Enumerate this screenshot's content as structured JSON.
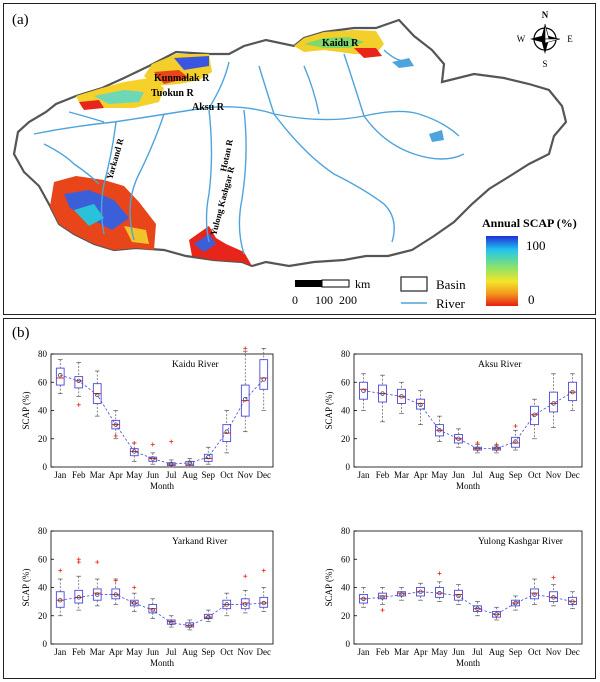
{
  "panel_a": {
    "label": "(a)",
    "compass": {
      "n": "N",
      "s": "S",
      "e": "E",
      "w": "W"
    },
    "rivers": [
      "Kaidu R",
      "Kunmalak R",
      "Tuokun R",
      "Aksu R",
      "Yarkand R",
      "Hotan R",
      "Yulong Kashgar R"
    ],
    "colorbar": {
      "title": "Annual SCAP (%)",
      "max": "100",
      "min": "0",
      "colors": [
        "#1f2fd8",
        "#22c6ec",
        "#8ae36a",
        "#f4e52a",
        "#f29a1e",
        "#e81e14"
      ]
    },
    "scalebar": {
      "unit": "km",
      "ticks": [
        "0",
        "100",
        "200"
      ]
    },
    "legend": {
      "basin": "Basin",
      "river": "River"
    },
    "colors": {
      "river": "#4fa3dc",
      "basin": "#555555"
    }
  },
  "panel_b": {
    "label": "(b)"
  },
  "chart_data": [
    {
      "type": "box",
      "title": "Kaidu River",
      "ylabel": "SCAP (%)",
      "xlabel": "Month",
      "categories": [
        "Jan",
        "Feb",
        "Mar",
        "Apr",
        "May",
        "Jun",
        "Jul",
        "Aug",
        "Sep",
        "Oct",
        "Nov",
        "Dec"
      ],
      "ylim": [
        0,
        80
      ],
      "yticks": [
        0,
        20,
        40,
        60,
        80
      ],
      "boxes": [
        {
          "min": 52,
          "q1": 58,
          "median": 63,
          "q3": 70,
          "max": 76,
          "mean": 65
        },
        {
          "min": 50,
          "q1": 56,
          "median": 61,
          "q3": 64,
          "max": 74,
          "mean": 61
        },
        {
          "min": 36,
          "q1": 45,
          "median": 52,
          "q3": 59,
          "max": 68,
          "mean": 51
        },
        {
          "min": 20,
          "q1": 27,
          "median": 30,
          "q3": 33,
          "max": 40,
          "mean": 30
        },
        {
          "min": 4,
          "q1": 8,
          "median": 11,
          "q3": 13,
          "max": 17,
          "mean": 11
        },
        {
          "min": 2,
          "q1": 4,
          "median": 6,
          "q3": 7,
          "max": 10,
          "mean": 6
        },
        {
          "min": 0,
          "q1": 1,
          "median": 2,
          "q3": 3,
          "max": 5,
          "mean": 2
        },
        {
          "min": 0,
          "q1": 1,
          "median": 2,
          "q3": 4,
          "max": 6,
          "mean": 3
        },
        {
          "min": 2,
          "q1": 4,
          "median": 6,
          "q3": 9,
          "max": 14,
          "mean": 7
        },
        {
          "min": 10,
          "q1": 18,
          "median": 24,
          "q3": 30,
          "max": 40,
          "mean": 25
        },
        {
          "min": 25,
          "q1": 36,
          "median": 47,
          "q3": 58,
          "max": 82,
          "mean": 48
        },
        {
          "min": 40,
          "q1": 55,
          "median": 63,
          "q3": 76,
          "max": 84,
          "mean": 62
        }
      ],
      "outliers": [
        [
          2,
          44
        ],
        [
          4,
          22
        ],
        [
          5,
          17
        ],
        [
          6,
          16
        ],
        [
          7,
          18
        ],
        [
          11,
          84
        ]
      ]
    },
    {
      "type": "box",
      "title": "Aksu River",
      "ylabel": "SCAP (%)",
      "xlabel": "Month",
      "categories": [
        "Jan",
        "Feb",
        "Mar",
        "Apr",
        "May",
        "Jun",
        "Jul",
        "Aug",
        "Sep",
        "Oct",
        "Nov",
        "Dec"
      ],
      "ylim": [
        0,
        80
      ],
      "yticks": [
        0,
        20,
        40,
        60,
        80
      ],
      "boxes": [
        {
          "min": 40,
          "q1": 48,
          "median": 55,
          "q3": 60,
          "max": 66,
          "mean": 54
        },
        {
          "min": 32,
          "q1": 46,
          "median": 52,
          "q3": 58,
          "max": 65,
          "mean": 52
        },
        {
          "min": 38,
          "q1": 45,
          "median": 50,
          "q3": 55,
          "max": 60,
          "mean": 50
        },
        {
          "min": 30,
          "q1": 41,
          "median": 45,
          "q3": 48,
          "max": 54,
          "mean": 44
        },
        {
          "min": 18,
          "q1": 22,
          "median": 26,
          "q3": 30,
          "max": 36,
          "mean": 26
        },
        {
          "min": 14,
          "q1": 17,
          "median": 20,
          "q3": 23,
          "max": 27,
          "mean": 20
        },
        {
          "min": 10,
          "q1": 12,
          "median": 13,
          "q3": 14,
          "max": 16,
          "mean": 13
        },
        {
          "min": 10,
          "q1": 12,
          "median": 13,
          "q3": 14,
          "max": 15,
          "mean": 13
        },
        {
          "min": 12,
          "q1": 14,
          "median": 17,
          "q3": 21,
          "max": 26,
          "mean": 18
        },
        {
          "min": 20,
          "q1": 30,
          "median": 37,
          "q3": 43,
          "max": 48,
          "mean": 37
        },
        {
          "min": 28,
          "q1": 39,
          "median": 45,
          "q3": 53,
          "max": 66,
          "mean": 45
        },
        {
          "min": 40,
          "q1": 47,
          "median": 53,
          "q3": 60,
          "max": 66,
          "mean": 53
        }
      ],
      "outliers": [
        [
          7,
          17
        ],
        [
          8,
          16
        ],
        [
          9,
          29
        ]
      ]
    },
    {
      "type": "box",
      "title": "Yarkand River",
      "ylabel": "SCAP (%)",
      "xlabel": "Month",
      "categories": [
        "Jan",
        "Feb",
        "Mar",
        "Apr",
        "May",
        "Jun",
        "Jul",
        "Aug",
        "Sep",
        "Oct",
        "Nov",
        "Dec"
      ],
      "ylim": [
        0,
        80
      ],
      "yticks": [
        0,
        20,
        40,
        60,
        80
      ],
      "boxes": [
        {
          "min": 20,
          "q1": 26,
          "median": 31,
          "q3": 37,
          "max": 46,
          "mean": 31
        },
        {
          "min": 24,
          "q1": 29,
          "median": 33,
          "q3": 38,
          "max": 48,
          "mean": 33
        },
        {
          "min": 27,
          "q1": 31,
          "median": 36,
          "q3": 39,
          "max": 46,
          "mean": 35
        },
        {
          "min": 28,
          "q1": 32,
          "median": 35,
          "q3": 39,
          "max": 46,
          "mean": 35
        },
        {
          "min": 23,
          "q1": 27,
          "median": 29,
          "q3": 31,
          "max": 36,
          "mean": 29
        },
        {
          "min": 18,
          "q1": 22,
          "median": 25,
          "q3": 28,
          "max": 32,
          "mean": 24
        },
        {
          "min": 12,
          "q1": 14,
          "median": 16,
          "q3": 17,
          "max": 20,
          "mean": 15
        },
        {
          "min": 10,
          "q1": 12,
          "median": 13,
          "q3": 15,
          "max": 17,
          "mean": 13
        },
        {
          "min": 16,
          "q1": 18,
          "median": 19,
          "q3": 21,
          "max": 24,
          "mean": 19
        },
        {
          "min": 20,
          "q1": 25,
          "median": 28,
          "q3": 31,
          "max": 36,
          "mean": 28
        },
        {
          "min": 22,
          "q1": 25,
          "median": 29,
          "q3": 32,
          "max": 38,
          "mean": 28
        },
        {
          "min": 23,
          "q1": 26,
          "median": 29,
          "q3": 33,
          "max": 40,
          "mean": 29
        }
      ],
      "outliers": [
        [
          1,
          52
        ],
        [
          2,
          58
        ],
        [
          2,
          60
        ],
        [
          3,
          58
        ],
        [
          4,
          45
        ],
        [
          5,
          40
        ],
        [
          11,
          48
        ],
        [
          12,
          52
        ]
      ]
    },
    {
      "type": "box",
      "title": "Yulong Kashgar River",
      "ylabel": "SCAP (%)",
      "xlabel": "Month",
      "categories": [
        "Jan",
        "Feb",
        "Mar",
        "Apr",
        "May",
        "Jun",
        "Jul",
        "Aug",
        "Sep",
        "Oct",
        "Nov",
        "Dec"
      ],
      "ylim": [
        0,
        80
      ],
      "yticks": [
        0,
        20,
        40,
        60,
        80
      ],
      "boxes": [
        {
          "min": 26,
          "q1": 29,
          "median": 32,
          "q3": 35,
          "max": 40,
          "mean": 32
        },
        {
          "min": 28,
          "q1": 32,
          "median": 34,
          "q3": 36,
          "max": 40,
          "mean": 33
        },
        {
          "min": 31,
          "q1": 34,
          "median": 36,
          "q3": 37,
          "max": 40,
          "mean": 35
        },
        {
          "min": 31,
          "q1": 34,
          "median": 37,
          "q3": 40,
          "max": 43,
          "mean": 37
        },
        {
          "min": 30,
          "q1": 33,
          "median": 36,
          "q3": 40,
          "max": 44,
          "mean": 36
        },
        {
          "min": 28,
          "q1": 31,
          "median": 35,
          "q3": 38,
          "max": 42,
          "mean": 34
        },
        {
          "min": 20,
          "q1": 23,
          "median": 25,
          "q3": 27,
          "max": 30,
          "mean": 25
        },
        {
          "min": 17,
          "q1": 19,
          "median": 21,
          "q3": 23,
          "max": 26,
          "mean": 21
        },
        {
          "min": 24,
          "q1": 27,
          "median": 29,
          "q3": 31,
          "max": 34,
          "mean": 29
        },
        {
          "min": 28,
          "q1": 32,
          "median": 36,
          "q3": 39,
          "max": 46,
          "mean": 35
        },
        {
          "min": 27,
          "q1": 30,
          "median": 33,
          "q3": 37,
          "max": 42,
          "mean": 33
        },
        {
          "min": 25,
          "q1": 28,
          "median": 30,
          "q3": 33,
          "max": 37,
          "mean": 30
        }
      ],
      "outliers": [
        [
          2,
          24
        ],
        [
          5,
          50
        ],
        [
          11,
          47
        ]
      ]
    }
  ]
}
